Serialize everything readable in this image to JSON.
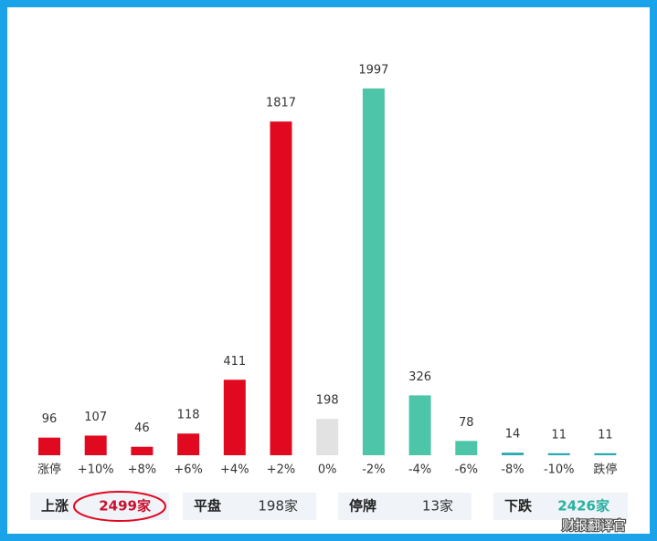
{
  "chart_data": {
    "type": "bar",
    "categories": [
      "涨停",
      "+10%",
      "+8%",
      "+6%",
      "+4%",
      "+2%",
      "0%",
      "-2%",
      "-4%",
      "-6%",
      "-8%",
      "-10%",
      "跌停"
    ],
    "values": [
      96,
      107,
      46,
      118,
      411,
      1817,
      198,
      1997,
      326,
      78,
      14,
      11,
      11
    ],
    "colors": [
      "#e0091f",
      "#e0091f",
      "#e0091f",
      "#e0091f",
      "#e0091f",
      "#e0091f",
      "#e2e2e2",
      "#4cc5a8",
      "#4cc5a8",
      "#4cc5a8",
      "#2aa9b0",
      "#2aa9b0",
      "#2aa9b0"
    ]
  },
  "summary": [
    {
      "label": "上涨",
      "value": "2499家",
      "color": "#c8102e"
    },
    {
      "label": "平盘",
      "value": "198家",
      "color": "#333333"
    },
    {
      "label": "停牌",
      "value": "13家",
      "color": "#333333"
    },
    {
      "label": "下跌",
      "value": "2426家",
      "color": "#2ab0a0"
    }
  ],
  "watermark": "财报翻译官"
}
